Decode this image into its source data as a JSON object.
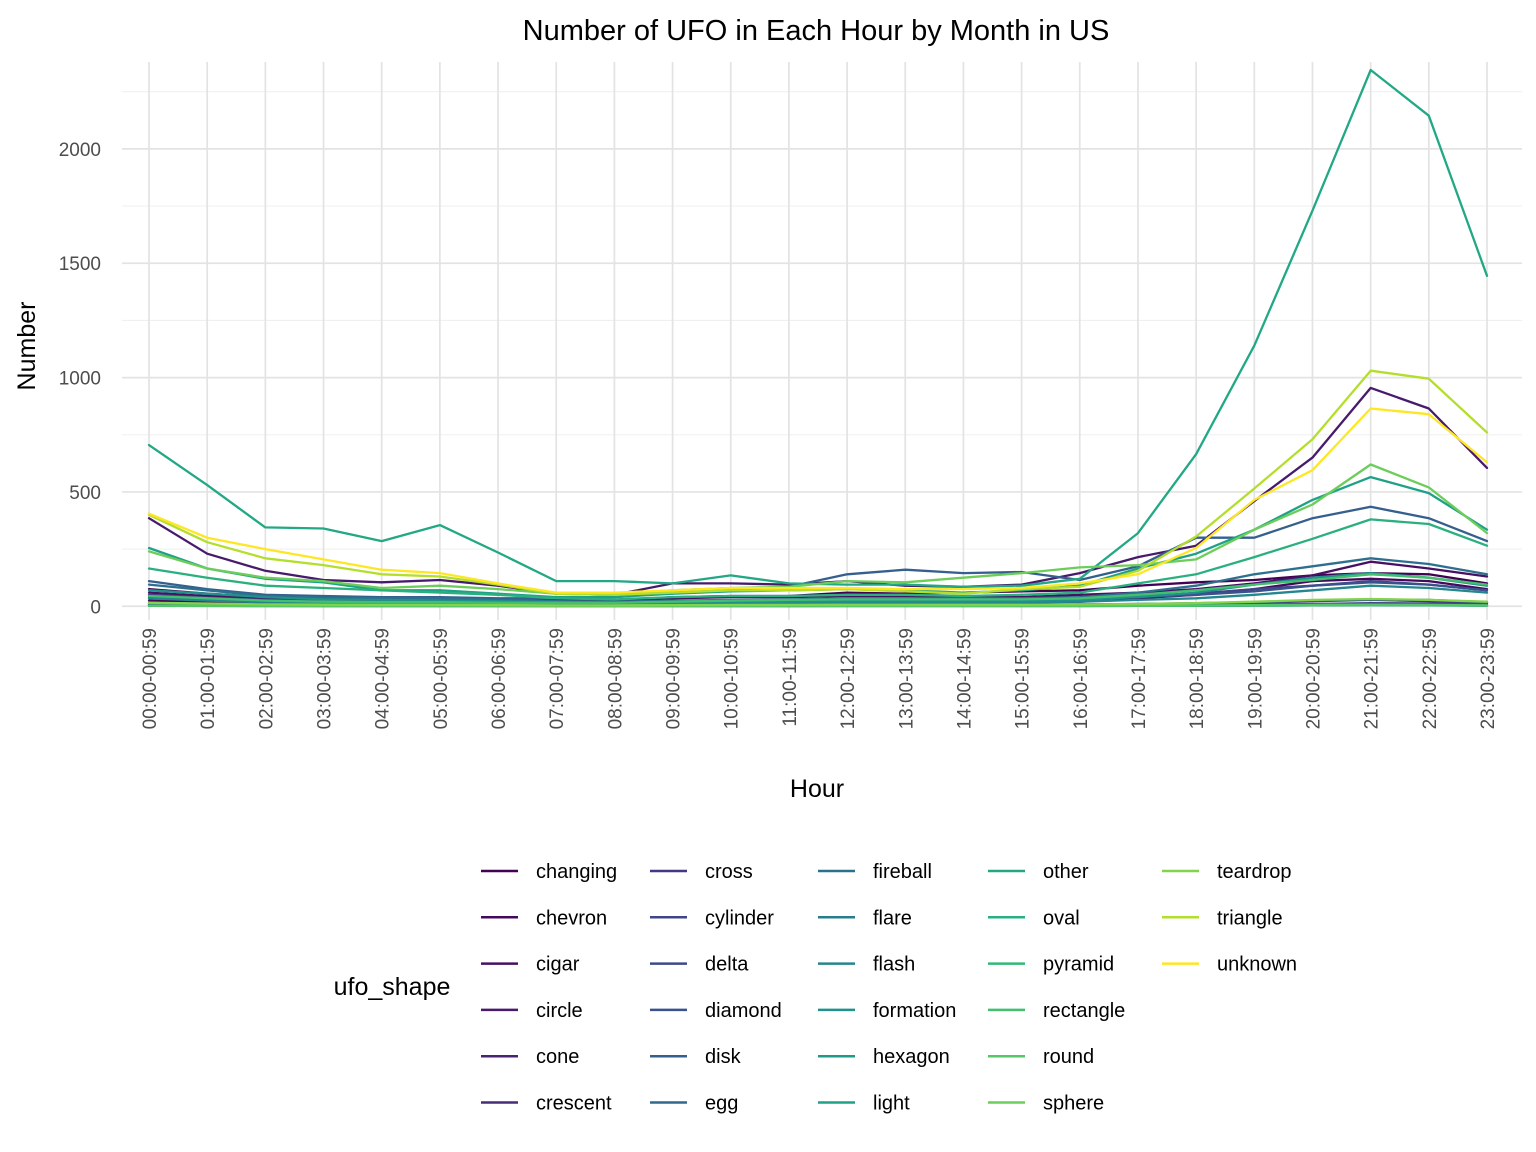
{
  "chart_data": {
    "type": "line",
    "title": "Number of UFO in Each Hour by Month in US",
    "xlabel": "Hour",
    "ylabel": "Number",
    "ylim": [
      -60,
      2380
    ],
    "yticks": [
      0,
      500,
      1000,
      1500,
      2000
    ],
    "grid": true,
    "legend": {
      "title": "ufo_shape",
      "position": "bottom",
      "columns": 5
    },
    "categories": [
      "00:00-00:59",
      "01:00-01:59",
      "02:00-02:59",
      "03:00-03:59",
      "04:00-04:59",
      "05:00-05:59",
      "06:00-06:59",
      "07:00-07:59",
      "08:00-08:59",
      "09:00-09:59",
      "10:00-10:59",
      "11:00-11:59",
      "12:00-12:59",
      "13:00-13:59",
      "14:00-14:59",
      "15:00-15:59",
      "16:00-16:59",
      "17:00-17:59",
      "18:00-18:59",
      "19:00-19:59",
      "20:00-20:59",
      "21:00-21:59",
      "22:00-22:59",
      "23:00-23:59"
    ],
    "series": [
      {
        "name": "changing",
        "color": "#440154",
        "values": [
          75,
          55,
          40,
          35,
          30,
          30,
          25,
          25,
          25,
          40,
          45,
          45,
          60,
          55,
          60,
          65,
          70,
          90,
          105,
          115,
          135,
          145,
          140,
          100
        ]
      },
      {
        "name": "chevron",
        "color": "#46085C",
        "values": [
          25,
          20,
          12,
          10,
          8,
          8,
          6,
          5,
          5,
          6,
          8,
          10,
          12,
          12,
          15,
          15,
          20,
          35,
          50,
          75,
          110,
          120,
          110,
          75
        ]
      },
      {
        "name": "cigar",
        "color": "#471063",
        "values": [
          60,
          45,
          35,
          30,
          25,
          25,
          20,
          20,
          25,
          35,
          40,
          40,
          45,
          45,
          40,
          40,
          50,
          60,
          75,
          100,
          135,
          195,
          165,
          130
        ]
      },
      {
        "name": "circle",
        "color": "#481A6C",
        "values": [
          385,
          230,
          155,
          115,
          105,
          115,
          90,
          55,
          50,
          100,
          100,
          95,
          110,
          90,
          85,
          95,
          145,
          215,
          265,
          460,
          650,
          955,
          865,
          605
        ]
      },
      {
        "name": "cone",
        "color": "#482374",
        "values": [
          10,
          8,
          5,
          5,
          4,
          4,
          3,
          3,
          3,
          4,
          5,
          5,
          5,
          6,
          6,
          6,
          8,
          10,
          12,
          18,
          25,
          30,
          25,
          15
        ]
      },
      {
        "name": "crescent",
        "color": "#472C7A",
        "values": [
          2,
          2,
          1,
          1,
          1,
          1,
          1,
          1,
          1,
          1,
          1,
          1,
          1,
          1,
          1,
          1,
          1,
          2,
          3,
          4,
          5,
          6,
          5,
          3
        ]
      },
      {
        "name": "cross",
        "color": "#453781",
        "values": [
          10,
          8,
          5,
          4,
          3,
          4,
          3,
          3,
          3,
          4,
          5,
          5,
          6,
          6,
          5,
          6,
          7,
          9,
          12,
          15,
          22,
          28,
          22,
          14
        ]
      },
      {
        "name": "cylinder",
        "color": "#414487",
        "values": [
          50,
          38,
          28,
          22,
          18,
          18,
          15,
          18,
          18,
          22,
          25,
          25,
          30,
          30,
          30,
          30,
          35,
          45,
          55,
          75,
          90,
          110,
          95,
          70
        ]
      },
      {
        "name": "delta",
        "color": "#3E4A89",
        "values": [
          5,
          4,
          3,
          3,
          2,
          2,
          2,
          2,
          2,
          2,
          3,
          3,
          3,
          3,
          3,
          3,
          4,
          5,
          6,
          8,
          10,
          14,
          12,
          8
        ]
      },
      {
        "name": "diamond",
        "color": "#3A528B",
        "values": [
          40,
          30,
          22,
          20,
          18,
          18,
          15,
          15,
          18,
          22,
          25,
          25,
          30,
          30,
          30,
          30,
          35,
          40,
          50,
          65,
          90,
          105,
          95,
          70
        ]
      },
      {
        "name": "disk",
        "color": "#355F8D",
        "values": [
          110,
          75,
          50,
          45,
          40,
          40,
          35,
          35,
          40,
          60,
          75,
          85,
          140,
          160,
          145,
          150,
          115,
          175,
          300,
          300,
          385,
          435,
          385,
          285
        ]
      },
      {
        "name": "egg",
        "color": "#31688E",
        "values": [
          12,
          10,
          6,
          5,
          5,
          5,
          4,
          4,
          4,
          5,
          6,
          6,
          7,
          7,
          7,
          7,
          8,
          10,
          14,
          18,
          25,
          30,
          28,
          18
        ]
      },
      {
        "name": "fireball",
        "color": "#2D708E",
        "values": [
          95,
          70,
          45,
          38,
          35,
          35,
          28,
          22,
          20,
          25,
          28,
          30,
          35,
          35,
          35,
          35,
          40,
          60,
          90,
          140,
          175,
          210,
          185,
          140
        ]
      },
      {
        "name": "flare",
        "color": "#287C8E",
        "values": [
          3,
          2,
          2,
          1,
          1,
          1,
          1,
          1,
          1,
          1,
          1,
          1,
          2,
          2,
          2,
          2,
          2,
          3,
          4,
          5,
          6,
          7,
          6,
          4
        ]
      },
      {
        "name": "flash",
        "color": "#24868E",
        "values": [
          35,
          25,
          18,
          15,
          14,
          14,
          12,
          10,
          10,
          12,
          14,
          15,
          18,
          18,
          18,
          18,
          20,
          28,
          35,
          50,
          70,
          90,
          80,
          60
        ]
      },
      {
        "name": "formation",
        "color": "#21918C",
        "values": [
          70,
          55,
          40,
          30,
          28,
          25,
          22,
          18,
          15,
          18,
          20,
          20,
          22,
          22,
          22,
          22,
          28,
          40,
          60,
          95,
          125,
          145,
          125,
          90
        ]
      },
      {
        "name": "hexagon",
        "color": "#1F9A8A",
        "values": [
          2,
          1,
          1,
          1,
          1,
          1,
          1,
          1,
          1,
          1,
          1,
          1,
          1,
          1,
          1,
          1,
          1,
          2,
          2,
          3,
          4,
          5,
          4,
          3
        ]
      },
      {
        "name": "light",
        "color": "#1FA188",
        "values": [
          255,
          165,
          120,
          105,
          70,
          70,
          55,
          40,
          40,
          55,
          65,
          70,
          75,
          70,
          60,
          70,
          90,
          165,
          230,
          335,
          465,
          565,
          495,
          335
        ]
      },
      {
        "name": "other",
        "color": "#22A884",
        "values": [
          705,
          530,
          345,
          340,
          285,
          355,
          235,
          110,
          110,
          100,
          135,
          100,
          95,
          95,
          85,
          90,
          120,
          320,
          665,
          1140,
          1730,
          2345,
          2145,
          1445
        ]
      },
      {
        "name": "oval",
        "color": "#2AB07F",
        "values": [
          165,
          125,
          90,
          80,
          70,
          60,
          50,
          35,
          30,
          40,
          45,
          45,
          50,
          50,
          45,
          50,
          60,
          100,
          140,
          215,
          295,
          380,
          360,
          265
        ]
      },
      {
        "name": "pyramid",
        "color": "#35B779",
        "values": [
          2,
          2,
          1,
          1,
          1,
          1,
          1,
          1,
          1,
          1,
          1,
          1,
          1,
          1,
          1,
          1,
          1,
          2,
          2,
          3,
          4,
          5,
          4,
          3
        ]
      },
      {
        "name": "rectangle",
        "color": "#44BF70",
        "values": [
          45,
          35,
          25,
          20,
          18,
          18,
          15,
          15,
          15,
          20,
          25,
          28,
          30,
          30,
          30,
          30,
          35,
          50,
          70,
          95,
          115,
          140,
          125,
          95
        ]
      },
      {
        "name": "round",
        "color": "#56C667",
        "values": [
          3,
          2,
          2,
          1,
          1,
          1,
          1,
          1,
          1,
          1,
          1,
          1,
          2,
          2,
          2,
          2,
          2,
          3,
          4,
          5,
          6,
          7,
          6,
          4
        ]
      },
      {
        "name": "sphere",
        "color": "#6CCD5A",
        "values": [
          240,
          165,
          125,
          110,
          80,
          90,
          75,
          55,
          50,
          70,
          80,
          85,
          110,
          105,
          125,
          145,
          170,
          180,
          205,
          335,
          445,
          620,
          520,
          320
        ]
      },
      {
        "name": "teardrop",
        "color": "#84D44B",
        "values": [
          15,
          12,
          8,
          7,
          6,
          6,
          5,
          4,
          4,
          5,
          6,
          6,
          7,
          7,
          7,
          7,
          8,
          10,
          14,
          20,
          28,
          32,
          28,
          20
        ]
      },
      {
        "name": "triangle",
        "color": "#B4DE2C",
        "values": [
          400,
          280,
          210,
          180,
          140,
          130,
          95,
          55,
          50,
          60,
          70,
          70,
          75,
          65,
          55,
          75,
          85,
          155,
          305,
          515,
          730,
          1030,
          995,
          760
        ]
      },
      {
        "name": "unknown",
        "color": "#FDE725",
        "values": [
          405,
          300,
          250,
          205,
          160,
          145,
          100,
          60,
          60,
          70,
          80,
          80,
          80,
          75,
          75,
          80,
          100,
          140,
          255,
          465,
          595,
          865,
          840,
          630
        ]
      }
    ]
  }
}
